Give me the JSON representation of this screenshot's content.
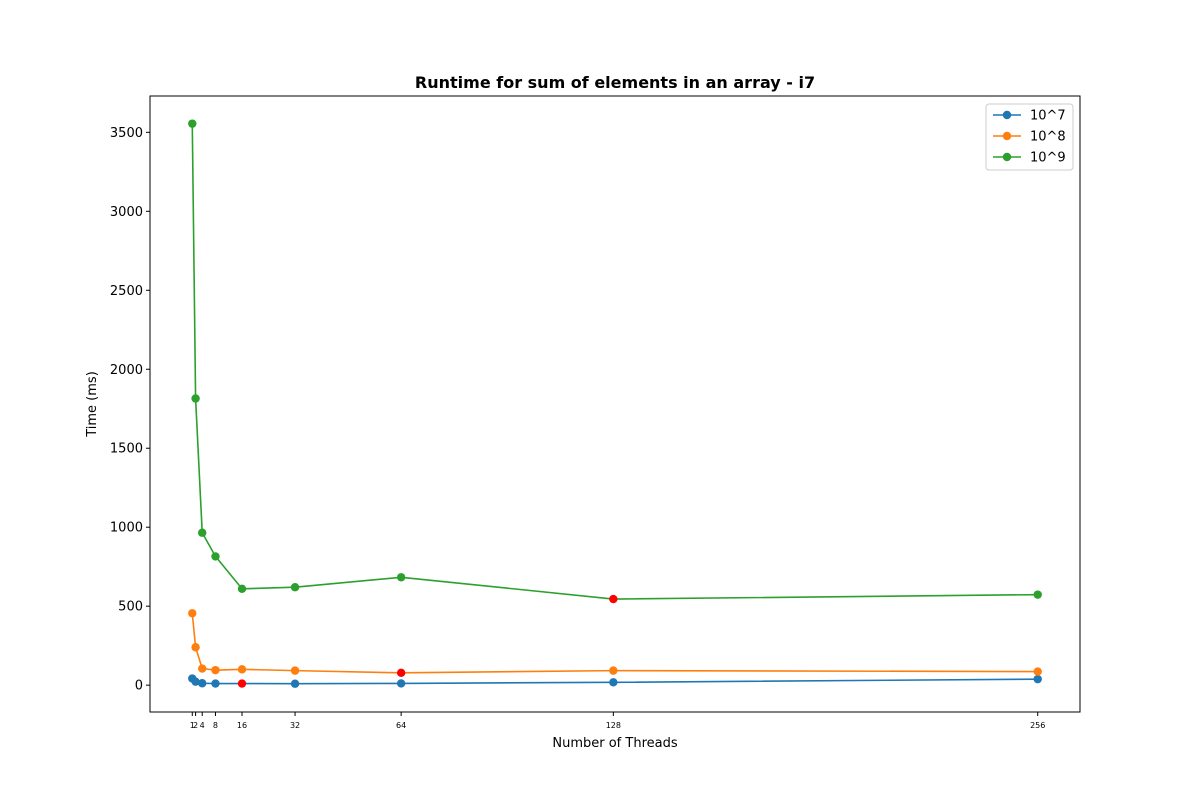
{
  "chart_data": {
    "type": "line",
    "title": "Runtime for sum of elements in an array - i7",
    "xlabel": "Number of Threads",
    "ylabel": "Time (ms)",
    "xlim": [
      -11.75,
      268.75
    ],
    "ylim": [
      -170,
      3730
    ],
    "x_ticks": [
      1,
      2,
      4,
      8,
      16,
      32,
      64,
      128,
      256
    ],
    "x_tick_labels": [
      "1",
      "2",
      "4",
      "8",
      "16",
      "32",
      "64",
      "128",
      "256"
    ],
    "y_ticks": [
      0,
      500,
      1000,
      1500,
      2000,
      2500,
      3000,
      3500
    ],
    "y_tick_labels": [
      "0",
      "500",
      "1000",
      "1500",
      "2000",
      "2500",
      "3000",
      "3500"
    ],
    "grid": false,
    "legend_position": "top-right",
    "highlight_color": "#ff0000",
    "x": [
      1,
      2,
      4,
      8,
      16,
      32,
      64,
      128,
      256
    ],
    "series": [
      {
        "name": "10^7",
        "color": "#1f77b4",
        "values": [
          42,
          22,
          12,
          10,
          10,
          9,
          11,
          18,
          38
        ],
        "highlight_index": 4
      },
      {
        "name": "10^8",
        "color": "#ff7f0e",
        "values": [
          455,
          240,
          105,
          95,
          100,
          92,
          78,
          92,
          86
        ],
        "highlight_index": 6
      },
      {
        "name": "10^9",
        "color": "#2ca02c",
        "values": [
          3555,
          1815,
          965,
          815,
          610,
          620,
          683,
          545,
          573
        ],
        "highlight_index": 7
      }
    ]
  }
}
